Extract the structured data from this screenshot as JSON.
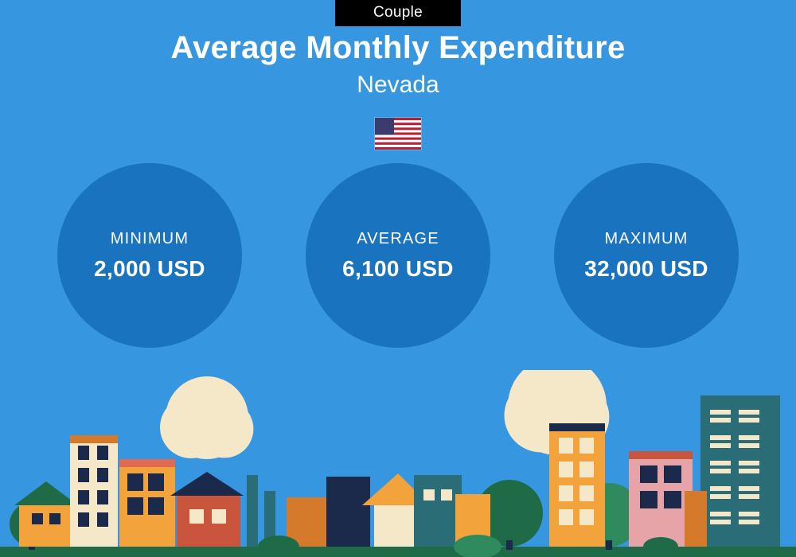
{
  "colors": {
    "background": "#3696e0",
    "badge_bg": "#000000",
    "circle_bg": "#1a73be",
    "text": "#ffffff",
    "green": "#1f6b47",
    "green_light": "#2f8a5d",
    "orange": "#f2a33c",
    "orange_dark": "#d47a2a",
    "coral": "#e06a52",
    "navy": "#1b2a4a",
    "cream": "#f5e8c9",
    "teal": "#2b6d76",
    "brick": "#c9553d",
    "rose": "#e6a3a8",
    "flag_red": "#b22234",
    "flag_white": "#ffffff",
    "flag_blue": "#3c3b6e"
  },
  "badge": "Couple",
  "title": "Average Monthly Expenditure",
  "subtitle": "Nevada",
  "stats": [
    {
      "label": "MINIMUM",
      "value": "2,000 USD"
    },
    {
      "label": "AVERAGE",
      "value": "6,100 USD"
    },
    {
      "label": "MAXIMUM",
      "value": "32,000 USD"
    }
  ]
}
